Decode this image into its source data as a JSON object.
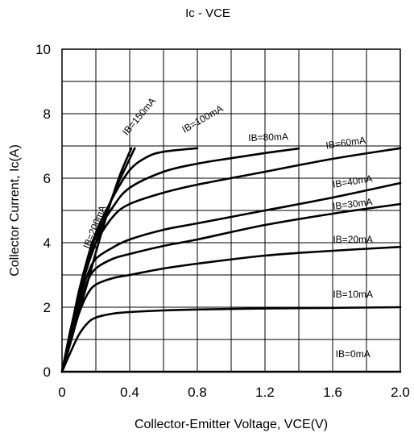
{
  "chart_data": {
    "type": "line",
    "title": "Ic - VCE",
    "xlabel": "Collector-Emitter Voltage, VCE(V)",
    "ylabel": "Collector Current, Ic(A)",
    "xlim": [
      0,
      2.0
    ],
    "ylim": [
      0,
      10
    ],
    "x_ticks": [
      "0",
      "0.4",
      "0.8",
      "1.2",
      "1.6",
      "2.0"
    ],
    "y_ticks": [
      "0",
      "2",
      "4",
      "6",
      "8",
      "10"
    ],
    "grid": true,
    "legend": "none",
    "line_color": "#000000",
    "series": [
      {
        "name": "IB=0mA",
        "label_at": [
          1.72,
          0.45
        ],
        "label_angle": 0,
        "points": [
          [
            0,
            0
          ],
          [
            2.0,
            0
          ]
        ]
      },
      {
        "name": "IB=10mA",
        "label_at": [
          1.72,
          2.3
        ],
        "label_angle": 0,
        "points": [
          [
            0,
            0
          ],
          [
            0.05,
            0.6
          ],
          [
            0.1,
            1.15
          ],
          [
            0.15,
            1.5
          ],
          [
            0.2,
            1.68
          ],
          [
            0.3,
            1.8
          ],
          [
            0.4,
            1.85
          ],
          [
            0.6,
            1.9
          ],
          [
            0.8,
            1.93
          ],
          [
            1.2,
            1.96
          ],
          [
            1.6,
            1.98
          ],
          [
            2.0,
            2.0
          ]
        ]
      },
      {
        "name": "IB=20mA",
        "label_at": [
          1.72,
          4.0
        ],
        "label_angle": 0,
        "points": [
          [
            0,
            0
          ],
          [
            0.05,
            0.9
          ],
          [
            0.1,
            1.8
          ],
          [
            0.15,
            2.4
          ],
          [
            0.2,
            2.7
          ],
          [
            0.3,
            2.9
          ],
          [
            0.4,
            3.0
          ],
          [
            0.6,
            3.2
          ],
          [
            0.8,
            3.35
          ],
          [
            1.2,
            3.6
          ],
          [
            1.6,
            3.75
          ],
          [
            2.0,
            3.87
          ]
        ]
      },
      {
        "name": "IB=30mA",
        "label_at": [
          1.72,
          5.1
        ],
        "label_angle": -7,
        "points": [
          [
            0,
            0
          ],
          [
            0.05,
            1.0
          ],
          [
            0.1,
            2.0
          ],
          [
            0.15,
            2.8
          ],
          [
            0.2,
            3.2
          ],
          [
            0.3,
            3.5
          ],
          [
            0.4,
            3.65
          ],
          [
            0.6,
            3.9
          ],
          [
            0.8,
            4.1
          ],
          [
            1.2,
            4.55
          ],
          [
            1.6,
            4.9
          ],
          [
            2.0,
            5.2
          ]
        ]
      },
      {
        "name": "IB=40mA",
        "label_at": [
          1.72,
          5.8
        ],
        "label_angle": -9,
        "points": [
          [
            0,
            0
          ],
          [
            0.05,
            1.1
          ],
          [
            0.1,
            2.2
          ],
          [
            0.15,
            3.0
          ],
          [
            0.2,
            3.5
          ],
          [
            0.3,
            3.85
          ],
          [
            0.4,
            4.1
          ],
          [
            0.6,
            4.4
          ],
          [
            0.8,
            4.6
          ],
          [
            1.2,
            5.0
          ],
          [
            1.6,
            5.4
          ],
          [
            2.0,
            5.85
          ]
        ]
      },
      {
        "name": "IB=60mA",
        "label_at": [
          1.68,
          7.0
        ],
        "label_angle": -8,
        "points": [
          [
            0,
            0
          ],
          [
            0.05,
            1.15
          ],
          [
            0.1,
            2.3
          ],
          [
            0.15,
            3.3
          ],
          [
            0.2,
            4.0
          ],
          [
            0.3,
            4.8
          ],
          [
            0.4,
            5.2
          ],
          [
            0.6,
            5.55
          ],
          [
            0.8,
            5.8
          ],
          [
            1.2,
            6.2
          ],
          [
            1.6,
            6.6
          ],
          [
            2.0,
            6.93
          ]
        ]
      },
      {
        "name": "IB=80mA",
        "label_at": [
          1.22,
          7.17
        ],
        "label_angle": -2,
        "points": [
          [
            0,
            0
          ],
          [
            0.05,
            1.2
          ],
          [
            0.1,
            2.4
          ],
          [
            0.15,
            3.4
          ],
          [
            0.2,
            4.2
          ],
          [
            0.3,
            5.1
          ],
          [
            0.4,
            5.7
          ],
          [
            0.6,
            6.2
          ],
          [
            0.8,
            6.45
          ],
          [
            1.0,
            6.62
          ],
          [
            1.2,
            6.78
          ],
          [
            1.4,
            6.92
          ]
        ]
      },
      {
        "name": "IB=100mA",
        "label_at": [
          0.84,
          7.75
        ],
        "label_angle": -30,
        "points": [
          [
            0,
            0
          ],
          [
            0.05,
            1.25
          ],
          [
            0.1,
            2.5
          ],
          [
            0.15,
            3.5
          ],
          [
            0.2,
            4.3
          ],
          [
            0.3,
            5.4
          ],
          [
            0.4,
            6.25
          ],
          [
            0.5,
            6.65
          ],
          [
            0.6,
            6.82
          ],
          [
            0.8,
            6.93
          ]
        ]
      },
      {
        "name": "IB=150mA",
        "label_at": [
          0.47,
          7.85
        ],
        "label_angle": -50,
        "points": [
          [
            0,
            0
          ],
          [
            0.05,
            1.3
          ],
          [
            0.1,
            2.35
          ],
          [
            0.15,
            3.25
          ],
          [
            0.2,
            4.0
          ],
          [
            0.3,
            5.45
          ],
          [
            0.4,
            6.6
          ],
          [
            0.43,
            6.93
          ]
        ]
      },
      {
        "name": "IB=200mA",
        "label_at": [
          0.21,
          4.45
        ],
        "label_angle": -68,
        "points": [
          [
            0,
            0
          ],
          [
            0.05,
            0.9
          ],
          [
            0.1,
            1.85
          ],
          [
            0.15,
            2.75
          ],
          [
            0.2,
            3.7
          ],
          [
            0.25,
            4.6
          ],
          [
            0.3,
            5.45
          ],
          [
            0.35,
            6.2
          ],
          [
            0.41,
            6.93
          ]
        ]
      }
    ]
  }
}
